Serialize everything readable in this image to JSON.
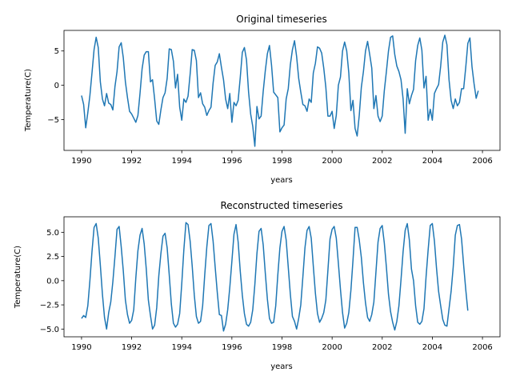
{
  "chart_data": [
    {
      "type": "line",
      "title": "Original timeseries",
      "xlabel": "years",
      "ylabel": "Temperature(C)",
      "xlim": [
        1989.3,
        2006.7
      ],
      "ylim": [
        -9.5,
        8.0
      ],
      "xticks": [
        1990,
        1992,
        1994,
        1996,
        1998,
        2000,
        2002,
        2004,
        2006
      ],
      "xtick_labels": [
        "1990",
        "1992",
        "1994",
        "1996",
        "1998",
        "2000",
        "2002",
        "2004",
        "2006"
      ],
      "yticks": [
        5,
        0,
        -5
      ],
      "ytick_labels": [
        "5",
        "0",
        "−5"
      ],
      "grid": false,
      "line_color": "#1f77b4",
      "series": [
        {
          "x_start": 1990.0,
          "x_step": 0.08333,
          "values": [
            -1.5,
            -2.8,
            -6.2,
            -4.0,
            -1.5,
            1.8,
            5.2,
            7.0,
            5.5,
            0.5,
            -2.0,
            -3.0,
            -1.2,
            -2.6,
            -2.8,
            -3.6,
            -0.2,
            2.0,
            5.6,
            6.2,
            4.0,
            0.5,
            -1.8,
            -3.8,
            -4.2,
            -4.8,
            -5.4,
            -4.4,
            -1.2,
            2.4,
            4.4,
            4.9,
            4.9,
            0.5,
            0.8,
            -2.0,
            -5.2,
            -5.7,
            -3.6,
            -1.8,
            -1.1,
            1.0,
            5.3,
            5.2,
            3.5,
            -0.4,
            1.6,
            -3.2,
            -5.1,
            -2.0,
            -2.5,
            -1.6,
            1.6,
            5.2,
            5.1,
            3.6,
            -1.8,
            -1.1,
            -2.7,
            -3.2,
            -4.4,
            -3.7,
            -3.2,
            0.3,
            2.9,
            3.4,
            4.6,
            2.6,
            0.8,
            -2.0,
            -3.4,
            -1.2,
            -5.4,
            -2.5,
            -3.0,
            -2.2,
            1.1,
            4.8,
            5.5,
            3.7,
            -1.0,
            -4.2,
            -6.0,
            -8.9,
            -3.1,
            -4.9,
            -4.5,
            -0.9,
            2.1,
            4.6,
            5.8,
            2.9,
            -1.0,
            -1.4,
            -1.8,
            -6.8,
            -6.2,
            -5.8,
            -2.0,
            -0.5,
            3.0,
            5.2,
            6.5,
            4.2,
            1.0,
            -1.0,
            -2.8,
            -3.0,
            -3.8,
            -2.0,
            -2.5,
            1.8,
            3.2,
            5.6,
            5.4,
            4.7,
            2.5,
            -0.3,
            -4.5,
            -4.5,
            -3.8,
            -6.3,
            -4.4,
            0.0,
            1.2,
            5.0,
            6.3,
            5.0,
            1.8,
            -3.7,
            -2.2,
            -6.3,
            -7.4,
            -4.4,
            -0.3,
            2.0,
            5.0,
            6.4,
            4.5,
            2.5,
            -3.4,
            -1.5,
            -4.5,
            -5.3,
            -4.5,
            -0.8,
            2.0,
            5.0,
            7.0,
            7.2,
            4.5,
            2.8,
            2.0,
            0.8,
            -2.0,
            -7.0,
            -0.5,
            -2.7,
            -1.5,
            -0.6,
            3.6,
            5.8,
            6.9,
            5.1,
            -0.4,
            1.3,
            -5.1,
            -3.5,
            -5.1,
            -1.2,
            -0.5,
            0.1,
            2.8,
            6.3,
            7.3,
            5.9,
            0.8,
            -2.2,
            -3.4,
            -2.0,
            -3.0,
            -2.5,
            -0.5,
            -0.5,
            2.6,
            6.1,
            6.9,
            2.7,
            0.2,
            -1.9,
            -0.8
          ]
        }
      ]
    },
    {
      "type": "line",
      "title": "Reconstructed timeseries",
      "xlabel": "years",
      "ylabel": "Temperature(C)",
      "xlim": [
        1989.3,
        2006.7
      ],
      "ylim": [
        -5.8,
        6.6
      ],
      "xticks": [
        1990,
        1992,
        1994,
        1996,
        1998,
        2000,
        2002,
        2004,
        2006
      ],
      "xtick_labels": [
        "1990",
        "1992",
        "1994",
        "1996",
        "1998",
        "2000",
        "2002",
        "2004",
        "2006"
      ],
      "yticks": [
        5.0,
        2.5,
        0.0,
        -2.5,
        -5.0
      ],
      "ytick_labels": [
        "5.0",
        "2.5",
        "0.0",
        "−2.5",
        "−5.0"
      ],
      "grid": false,
      "line_color": "#1f77b4",
      "series": [
        {
          "x_start": 1990.0,
          "x_step": 0.08333,
          "values": [
            -3.9,
            -3.6,
            -3.8,
            -2.6,
            0.0,
            3.0,
            5.5,
            5.9,
            4.4,
            1.6,
            -1.4,
            -3.8,
            -5.0,
            -3.3,
            -2.2,
            -0.1,
            2.5,
            5.3,
            5.6,
            3.5,
            1.0,
            -2.0,
            -3.5,
            -4.4,
            -4.1,
            -3.0,
            0.3,
            3.1,
            4.7,
            5.4,
            3.8,
            1.2,
            -2.0,
            -3.6,
            -5.0,
            -4.6,
            -2.8,
            0.5,
            2.8,
            4.6,
            4.9,
            3.4,
            0.6,
            -2.4,
            -4.4,
            -4.8,
            -4.5,
            -3.4,
            -0.3,
            3.2,
            6.0,
            5.8,
            4.1,
            1.5,
            -1.5,
            -3.7,
            -4.4,
            -4.2,
            -2.6,
            0.6,
            3.5,
            5.7,
            5.9,
            4.1,
            1.4,
            -1.2,
            -3.5,
            -3.6,
            -5.2,
            -4.5,
            -3.0,
            -0.7,
            2.0,
            4.8,
            5.8,
            4.0,
            1.0,
            -1.5,
            -3.4,
            -4.5,
            -4.7,
            -4.3,
            -3.0,
            -0.4,
            2.8,
            5.1,
            5.4,
            3.7,
            0.8,
            -1.9,
            -3.9,
            -4.4,
            -4.3,
            -2.6,
            0.6,
            3.4,
            5.1,
            5.6,
            4.2,
            1.4,
            -1.4,
            -3.7,
            -4.2,
            -5.0,
            -3.9,
            -2.5,
            0.4,
            3.4,
            5.2,
            5.6,
            4.4,
            1.5,
            -1.3,
            -3.4,
            -4.3,
            -3.9,
            -3.3,
            -2.0,
            1.1,
            4.3,
            5.3,
            5.6,
            4.4,
            1.8,
            -0.9,
            -3.3,
            -4.9,
            -4.4,
            -3.3,
            -1.0,
            2.1,
            5.5,
            5.5,
            4.2,
            2.4,
            -0.2,
            -2.3,
            -3.8,
            -4.2,
            -3.5,
            -2.2,
            0.9,
            4.0,
            5.4,
            5.7,
            3.9,
            1.4,
            -1.4,
            -3.2,
            -4.3,
            -5.1,
            -4.2,
            -2.6,
            0.1,
            3.0,
            5.2,
            5.9,
            4.2,
            1.2,
            0.0,
            -2.6,
            -4.3,
            -4.5,
            -4.2,
            -2.9,
            0.4,
            3.2,
            5.7,
            5.9,
            4.1,
            1.3,
            -1.1,
            -2.6,
            -4.0,
            -4.6,
            -4.7,
            -2.9,
            -1.1,
            1.4,
            4.7,
            5.7,
            5.8,
            4.3,
            1.6,
            -0.9,
            -3.1
          ]
        }
      ]
    }
  ]
}
